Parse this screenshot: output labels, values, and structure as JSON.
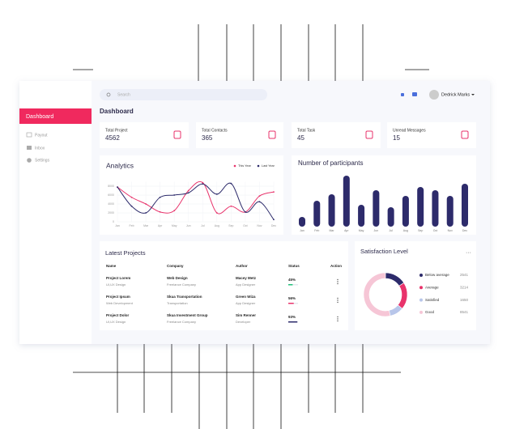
{
  "sidebar": {
    "items": [
      "Dashboard",
      "Payout",
      "Inbox",
      "Settings"
    ]
  },
  "header": {
    "search_placeholder": "Search",
    "user": "Dedrick Marks",
    "title": "Dashboard"
  },
  "stats": [
    {
      "label": "Total Project",
      "value": 4562
    },
    {
      "label": "Total Contacts",
      "value": 365
    },
    {
      "label": "Total Task",
      "value": 45
    },
    {
      "label": "Unread Messages",
      "value": 15
    }
  ],
  "chart_data": [
    {
      "type": "line",
      "title": "Analytics",
      "categories": [
        "Jan",
        "Feb",
        "Mar",
        "Apr",
        "May",
        "Jun",
        "Jul",
        "Aug",
        "Sep",
        "Oct",
        "Nov",
        "Dec"
      ],
      "series": [
        {
          "name": "This Year",
          "color": "#e8336b",
          "values": [
            7800,
            5500,
            4000,
            2200,
            2500,
            7000,
            8800,
            2000,
            3500,
            2200,
            5800,
            6700
          ]
        },
        {
          "name": "Last Year",
          "color": "#2d2b6b",
          "values": [
            7800,
            3500,
            2000,
            5500,
            6000,
            6500,
            8500,
            6200,
            8600,
            2200,
            4500,
            500
          ]
        }
      ],
      "ylim": [
        0,
        9000
      ],
      "yticks": [
        0,
        2000,
        4000,
        6000,
        8000
      ],
      "grid": true,
      "legend": "top-right"
    },
    {
      "type": "bar",
      "title": "Number of participants",
      "categories": [
        "Jan",
        "Feb",
        "Mar",
        "Apr",
        "May",
        "Jun",
        "Jul",
        "Aug",
        "Sep",
        "Oct",
        "Nov",
        "Dec"
      ],
      "values": [
        12,
        32,
        40,
        63,
        27,
        45,
        24,
        38,
        49,
        45,
        38,
        53
      ],
      "color": "#2d2b6b",
      "ylim": [
        0,
        70
      ]
    },
    {
      "type": "pie",
      "title": "Satisfaction Level",
      "categories": [
        "Below average",
        "Average",
        "Satisfied",
        "Good"
      ],
      "values": [
        2541,
        3214,
        1650,
        8541
      ],
      "colors": [
        "#2d2b6b",
        "#e8336b",
        "#b8c6ea",
        "#f6c6d6"
      ]
    }
  ],
  "projects": {
    "title": "Latest Projects",
    "columns": [
      "Name",
      "Company",
      "Author",
      "Status",
      "Action"
    ],
    "rows": [
      {
        "name": "Project Lorem",
        "subtitle": "UI,UX Design",
        "company": "Web Design",
        "company_type": "Freelance Company",
        "author": "Macey Metz",
        "role": "App Designer",
        "status": 45,
        "status_label": "45%",
        "color": "#22c07a"
      },
      {
        "name": "Project Ipsum",
        "subtitle": "Web Development",
        "company": "Skua Transportation",
        "company_type": "Transportation",
        "author": "Green Wiza",
        "role": "App Designer",
        "status": 56,
        "status_label": "56%",
        "color": "#e8336b"
      },
      {
        "name": "Project Dolor",
        "subtitle": "UI,UX Design",
        "company": "Skua Investment Group",
        "company_type": "Freelance Company",
        "author": "Sim Renner",
        "role": "Developer",
        "status": 93,
        "status_label": "93%",
        "color": "#2d2b6b"
      }
    ]
  }
}
